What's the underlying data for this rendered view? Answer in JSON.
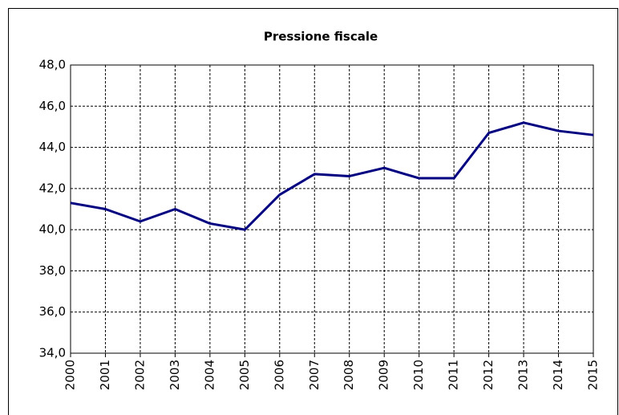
{
  "chart_data": {
    "type": "line",
    "title": "Pressione fiscale",
    "categories": [
      "2000",
      "2001",
      "2002",
      "2003",
      "2004",
      "2005",
      "2006",
      "2007",
      "2008",
      "2009",
      "2010",
      "2011",
      "2012",
      "2013",
      "2014",
      "2015"
    ],
    "series": [
      {
        "color": "#000080",
        "values": [
          41.3,
          41.0,
          40.4,
          41.0,
          40.3,
          40.0,
          41.7,
          42.7,
          42.6,
          43.0,
          42.5,
          42.5,
          44.7,
          45.2,
          44.8,
          44.6
        ]
      }
    ],
    "ylim": [
      34,
      48
    ],
    "yticks": [
      {
        "value": 34,
        "label": "34,0"
      },
      {
        "value": 36,
        "label": "36,0"
      },
      {
        "value": 38,
        "label": "38,0"
      },
      {
        "value": 40,
        "label": "40,0"
      },
      {
        "value": 42,
        "label": "42,0"
      },
      {
        "value": 44,
        "label": "44,0"
      },
      {
        "value": 46,
        "label": "46,0"
      },
      {
        "value": 48,
        "label": "48,0"
      }
    ],
    "grid": true
  }
}
